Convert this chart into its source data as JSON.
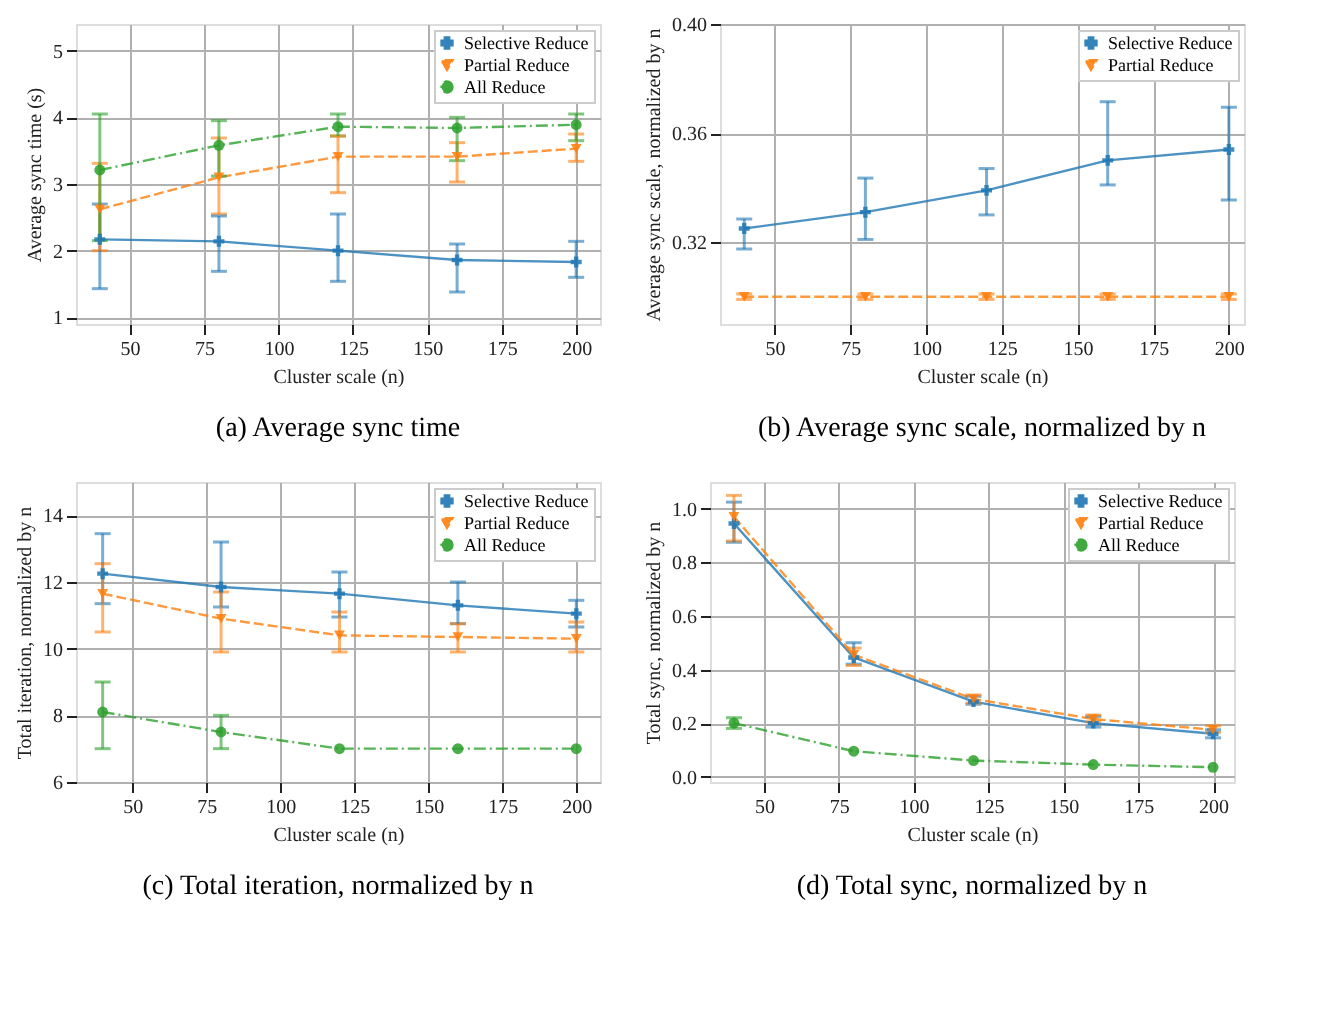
{
  "chart_data": [
    {
      "type": "line",
      "title": "(a) Average sync time",
      "xlabel": "Cluster scale (n)",
      "ylabel": "Average sync time (s)",
      "x": [
        40,
        80,
        120,
        160,
        200
      ],
      "xlim": [
        32,
        208
      ],
      "xticks": [
        50,
        75,
        100,
        125,
        150,
        175,
        200
      ],
      "ylim": [
        0.9,
        5.4
      ],
      "yticks": [
        1,
        2,
        3,
        4,
        5
      ],
      "grid": true,
      "legend": "top right",
      "series": [
        {
          "name": "Selective Reduce",
          "color": "#1f77b4",
          "marker": "cross",
          "line_style": "solid",
          "values": [
            2.17,
            2.14,
            2.0,
            1.86,
            1.83
          ],
          "errors": [
            [
              1.43,
              2.7
            ],
            [
              1.69,
              2.52
            ],
            [
              1.54,
              2.55
            ],
            [
              1.38,
              2.1
            ],
            [
              1.6,
              2.14
            ]
          ]
        },
        {
          "name": "Partial Reduce",
          "color": "#ff7f0e",
          "marker": "triangle",
          "line_style": "dashed",
          "values": [
            2.62,
            3.1,
            3.41,
            3.41,
            3.53
          ],
          "errors": [
            [
              2.0,
              3.31
            ],
            [
              2.55,
              3.69
            ],
            [
              2.87,
              3.72
            ],
            [
              3.03,
              3.62
            ],
            [
              3.34,
              3.75
            ]
          ]
        },
        {
          "name": "All Reduce",
          "color": "#2ca02c",
          "marker": "circle",
          "line_style": "dotted",
          "values": [
            3.21,
            3.58,
            3.86,
            3.84,
            3.89
          ],
          "errors": [
            [
              2.15,
              4.05
            ],
            [
              3.12,
              3.95
            ],
            [
              3.72,
              4.05
            ],
            [
              3.35,
              4.0
            ],
            [
              3.65,
              4.05
            ]
          ]
        }
      ]
    },
    {
      "type": "line",
      "title": "(b) Average sync scale, normalized by n",
      "xlabel": "Cluster scale (n)",
      "ylabel": "Average sync scale, normalized by n",
      "x": [
        40,
        80,
        120,
        160,
        200
      ],
      "xlim": [
        32,
        205
      ],
      "xticks": [
        50,
        75,
        100,
        125,
        150,
        175,
        200
      ],
      "ylim": [
        0.29,
        0.4
      ],
      "yticks": [
        {
          "value": 0.32,
          "label": "0.32"
        },
        {
          "value": 0.36,
          "label": "0.36"
        },
        {
          "value": 0.4,
          "label": "0.40"
        }
      ],
      "grid": true,
      "legend": "top right",
      "series": [
        {
          "name": "Selective Reduce",
          "color": "#1f77b4",
          "marker": "cross",
          "line_style": "solid",
          "values": [
            0.325,
            0.331,
            0.339,
            0.35,
            0.354
          ],
          "errors": [
            [
              0.3175,
              0.3285
            ],
            [
              0.321,
              0.3435
            ],
            [
              0.33,
              0.347
            ],
            [
              0.341,
              0.3715
            ],
            [
              0.3355,
              0.3695
            ]
          ]
        },
        {
          "name": "Partial Reduce",
          "color": "#ff7f0e",
          "marker": "triangle",
          "line_style": "dashed",
          "values": [
            0.3,
            0.3,
            0.3,
            0.3,
            0.3
          ],
          "errors": [
            0.001,
            0.001,
            0.001,
            0.001,
            0.001
          ]
        }
      ]
    },
    {
      "type": "line",
      "title": "(c) Total iteration, normalized by n",
      "xlabel": "Cluster scale (n)",
      "ylabel": "Total iteration, normalized by n",
      "x": [
        40,
        80,
        120,
        160,
        200
      ],
      "xlim": [
        31,
        208
      ],
      "xticks": [
        50,
        75,
        100,
        125,
        150,
        175,
        200
      ],
      "ylim": [
        6,
        15
      ],
      "yticks": [
        6,
        8,
        10,
        12,
        14
      ],
      "grid": true,
      "legend": "top right",
      "series": [
        {
          "name": "Selective Reduce",
          "color": "#1f77b4",
          "marker": "cross",
          "line_style": "solid",
          "values": [
            12.25,
            11.85,
            11.65,
            11.3,
            11.05
          ],
          "errors": [
            [
              11.35,
              13.45
            ],
            [
              11.25,
              13.2
            ],
            [
              10.95,
              12.3
            ],
            [
              10.75,
              12.0
            ],
            [
              10.65,
              11.45
            ]
          ]
        },
        {
          "name": "Partial Reduce",
          "color": "#ff7f0e",
          "marker": "triangle",
          "line_style": "dashed",
          "values": [
            11.65,
            10.9,
            10.4,
            10.35,
            10.3
          ],
          "errors": [
            [
              10.5,
              12.55
            ],
            [
              9.9,
              11.7
            ],
            [
              9.9,
              11.1
            ],
            [
              9.9,
              10.75
            ],
            [
              9.9,
              10.8
            ]
          ]
        },
        {
          "name": "All Reduce",
          "color": "#2ca02c",
          "marker": "circle",
          "line_style": "dotted",
          "values": [
            8.1,
            7.5,
            7.0,
            7.0,
            7.0
          ],
          "errors": [
            [
              7.0,
              9.0
            ],
            [
              7.0,
              8.0
            ],
            null,
            null,
            null
          ]
        }
      ]
    },
    {
      "type": "line",
      "title": "(d) Total sync, normalized by n",
      "xlabel": "Cluster scale (n)",
      "ylabel": "Total sync, normalized by n",
      "x": [
        40,
        80,
        120,
        160,
        200
      ],
      "xlim": [
        32,
        207
      ],
      "xticks": [
        50,
        75,
        100,
        125,
        150,
        175,
        200
      ],
      "ylim": [
        -0.02,
        1.1
      ],
      "yticks": [
        {
          "value": 0,
          "label": "0.0"
        },
        {
          "value": 0.2,
          "label": "0.2"
        },
        {
          "value": 0.4,
          "label": "0.4"
        },
        {
          "value": 0.6,
          "label": "0.6"
        },
        {
          "value": 0.8,
          "label": "0.8"
        },
        {
          "value": 1,
          "label": "1.0"
        }
      ],
      "grid": true,
      "legend": "top right",
      "series": [
        {
          "name": "Selective Reduce",
          "color": "#1f77b4",
          "marker": "cross",
          "line_style": "solid",
          "values": [
            0.945,
            0.445,
            0.28,
            0.2,
            0.16
          ],
          "errors": [
            [
              0.875,
              1.025
            ],
            [
              0.42,
              0.5
            ],
            [
              0.27,
              0.3
            ],
            [
              0.185,
              0.225
            ],
            [
              0.145,
              0.175
            ]
          ]
        },
        {
          "name": "Partial Reduce",
          "color": "#ff7f0e",
          "marker": "triangle",
          "line_style": "dashed",
          "values": [
            0.97,
            0.455,
            0.29,
            0.215,
            0.175
          ],
          "errors": [
            [
              0.88,
              1.05
            ],
            [
              0.415,
              0.48
            ],
            [
              0.275,
              0.305
            ],
            [
              0.205,
              0.23
            ],
            [
              0.165,
              0.19
            ]
          ]
        },
        {
          "name": "All Reduce",
          "color": "#2ca02c",
          "marker": "circle",
          "line_style": "dotted",
          "values": [
            0.2,
            0.095,
            0.06,
            0.045,
            0.035
          ],
          "errors": [
            [
              0.18,
              0.22
            ],
            null,
            null,
            null,
            null
          ]
        }
      ]
    }
  ]
}
